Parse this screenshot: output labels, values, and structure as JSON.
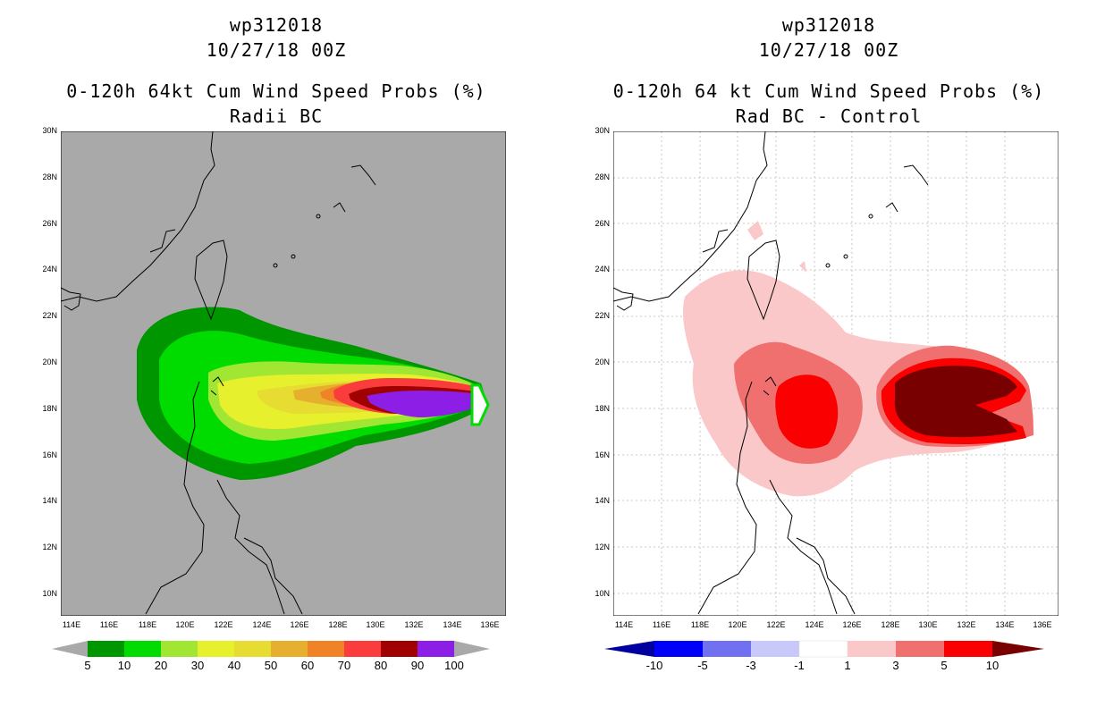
{
  "left_panel": {
    "storm_id": "wp312018",
    "datetime": "10/27/18 00Z",
    "title": "0-120h 64kt Cum Wind Speed Probs (%)",
    "subtitle": "Radii BC",
    "background_color": "#a9a9a9",
    "colorbar": {
      "labels": [
        "5",
        "10",
        "20",
        "30",
        "40",
        "50",
        "60",
        "70",
        "80",
        "90",
        "100"
      ],
      "colors": [
        "#009600",
        "#00dc00",
        "#a0e632",
        "#e6f02d",
        "#e6dc32",
        "#e6af2d",
        "#f08228",
        "#fa3c3c",
        "#a00000",
        "#8c1ee6"
      ]
    }
  },
  "right_panel": {
    "storm_id": "wp312018",
    "datetime": "10/27/18 00Z",
    "title": "0-120h 64 kt Cum Wind Speed Probs (%)",
    "subtitle": "Rad BC - Control",
    "background_color": "#ffffff",
    "colorbar": {
      "labels": [
        "-10",
        "-5",
        "-3",
        "-1",
        "1",
        "3",
        "5",
        "10"
      ],
      "colors": [
        "#0000a0",
        "#0000fa",
        "#7070f0",
        "#c8c8fa",
        "#ffffff",
        "#fac8c8",
        "#f07070",
        "#fa0000",
        "#780000"
      ]
    }
  },
  "map": {
    "lat_labels": [
      "30N",
      "28N",
      "26N",
      "24N",
      "22N",
      "20N",
      "18N",
      "16N",
      "14N",
      "12N",
      "10N"
    ],
    "lon_labels": [
      "114E",
      "116E",
      "118E",
      "120E",
      "122E",
      "124E",
      "126E",
      "128E",
      "130E",
      "132E",
      "134E",
      "136E"
    ]
  }
}
